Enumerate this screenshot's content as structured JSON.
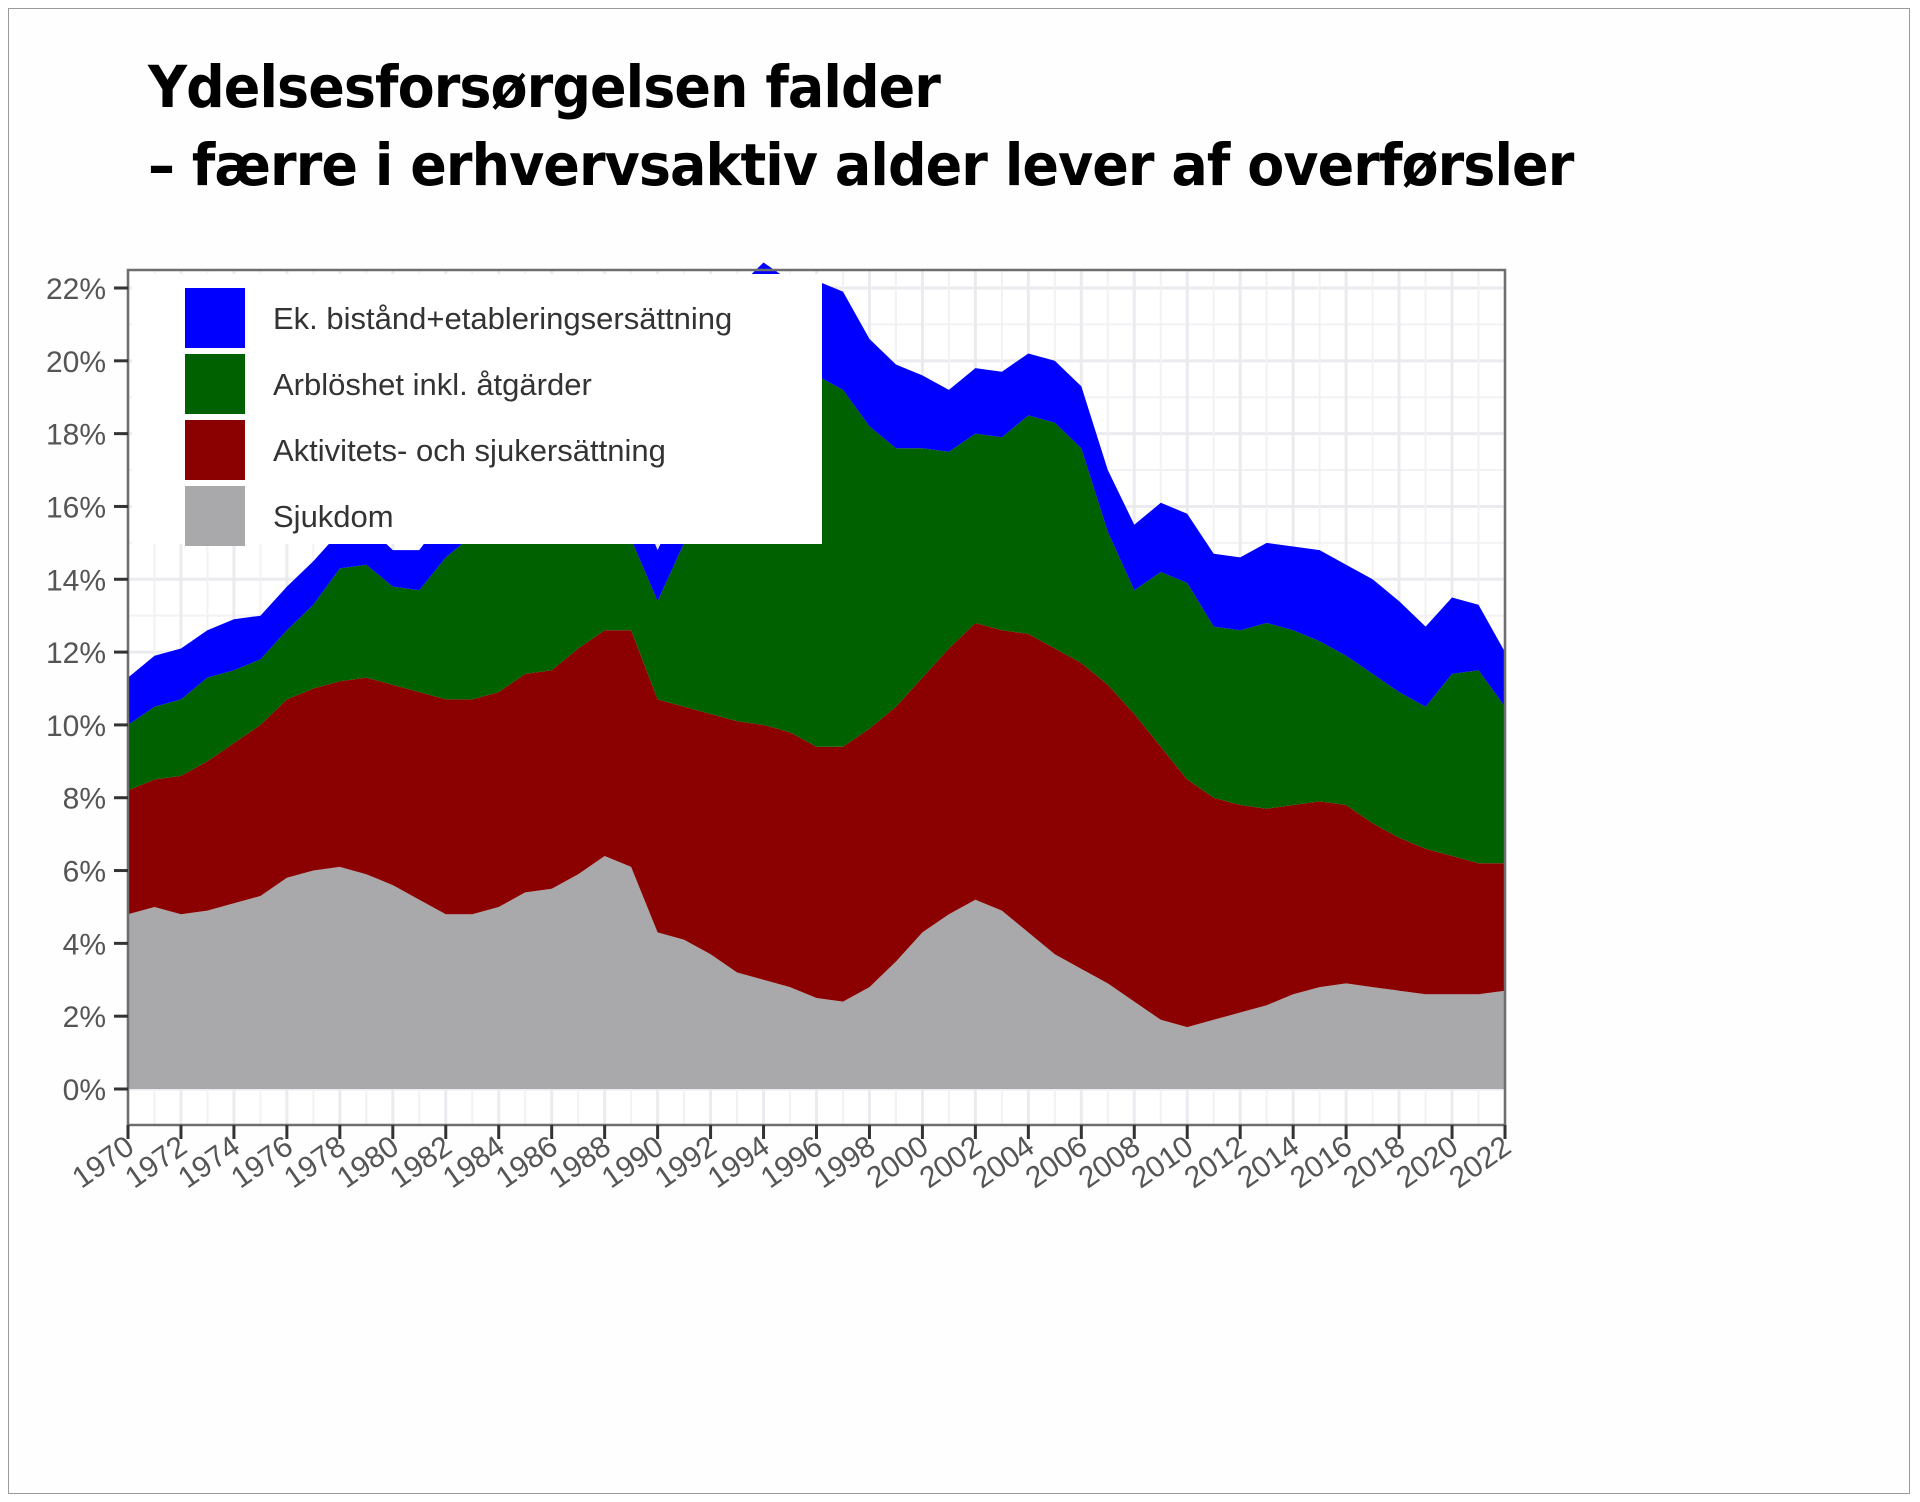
{
  "slide": {
    "title_line1": "Ydelsesforsørgelsen falder",
    "title_line2": "– færre i erhvervsaktiv alder lever af overførsler"
  },
  "chart_data": {
    "type": "area",
    "stacked": true,
    "title": "Ydelsesforsørgelsen falder – færre i erhvervsaktiv alder lever af overførsler",
    "xlabel": "",
    "ylabel": "",
    "x": [
      1970,
      1971,
      1972,
      1973,
      1974,
      1975,
      1976,
      1977,
      1978,
      1979,
      1980,
      1981,
      1982,
      1983,
      1984,
      1985,
      1986,
      1987,
      1988,
      1989,
      1990,
      1991,
      1992,
      1993,
      1994,
      1995,
      1996,
      1997,
      1998,
      1999,
      2000,
      2001,
      2002,
      2003,
      2004,
      2005,
      2006,
      2007,
      2008,
      2009,
      2010,
      2011,
      2012,
      2013,
      2014,
      2015,
      2016,
      2017,
      2018,
      2019,
      2020,
      2021,
      2022
    ],
    "xlim": [
      1970,
      2022
    ],
    "x_ticks": [
      "1970",
      "1972",
      "1974",
      "1976",
      "1978",
      "1980",
      "1982",
      "1984",
      "1986",
      "1988",
      "1990",
      "1992",
      "1994",
      "1996",
      "1998",
      "2000",
      "2002",
      "2004",
      "2006",
      "2008",
      "2010",
      "2012",
      "2014",
      "2016",
      "2018",
      "2020",
      "2022"
    ],
    "ylim": [
      -1,
      23.5
    ],
    "y_ticks": [
      "0%",
      "2%",
      "4%",
      "6%",
      "8%",
      "10%",
      "12%",
      "14%",
      "16%",
      "18%",
      "20%",
      "22%"
    ],
    "y_tick_values": [
      0,
      2,
      4,
      6,
      8,
      10,
      12,
      14,
      16,
      18,
      20,
      22
    ],
    "grid": true,
    "legend_position": "top-left",
    "unit": "%",
    "series": [
      {
        "name": "Sjukdom",
        "color": "#a9a8aa",
        "values": [
          4.8,
          5.0,
          4.8,
          4.9,
          5.1,
          5.3,
          5.8,
          6.0,
          6.1,
          5.9,
          5.6,
          5.2,
          4.8,
          4.8,
          5.0,
          5.4,
          5.5,
          5.9,
          6.4,
          6.1,
          4.3,
          4.1,
          3.7,
          3.2,
          3.0,
          2.8,
          2.5,
          2.4,
          2.8,
          3.5,
          4.3,
          4.8,
          5.2,
          4.9,
          4.3,
          3.7,
          3.3,
          2.9,
          2.4,
          1.9,
          1.7,
          1.9,
          2.1,
          2.3,
          2.6,
          2.8,
          2.9,
          2.8,
          2.7,
          2.6,
          2.6,
          2.6,
          2.7
        ]
      },
      {
        "name": "Aktivitets- och sjukersättning",
        "color": "#8b0000",
        "values": [
          3.4,
          3.5,
          3.8,
          4.1,
          4.4,
          4.7,
          4.9,
          5.0,
          5.1,
          5.4,
          5.5,
          5.7,
          5.9,
          5.9,
          5.9,
          6.0,
          6.0,
          6.2,
          6.2,
          6.5,
          6.4,
          6.4,
          6.6,
          6.9,
          7.0,
          7.0,
          6.9,
          7.0,
          7.1,
          7.0,
          7.0,
          7.3,
          7.6,
          7.7,
          8.2,
          8.4,
          8.4,
          8.2,
          7.9,
          7.5,
          6.8,
          6.1,
          5.7,
          5.4,
          5.2,
          5.1,
          4.9,
          4.5,
          4.2,
          4.0,
          3.8,
          3.6,
          3.5
        ]
      },
      {
        "name": "Arblöshet inkl. åtgärder",
        "color": "#006100",
        "values": [
          1.8,
          2.0,
          2.1,
          2.3,
          2.0,
          1.8,
          1.9,
          2.3,
          3.1,
          3.1,
          2.7,
          2.8,
          3.9,
          4.5,
          5.0,
          4.2,
          4.0,
          3.8,
          3.5,
          2.5,
          2.7,
          4.5,
          6.8,
          9.8,
          10.2,
          10.1,
          10.2,
          9.8,
          8.3,
          7.1,
          6.3,
          5.4,
          5.2,
          5.3,
          6.0,
          6.2,
          5.9,
          4.2,
          3.4,
          4.8,
          5.4,
          4.7,
          4.8,
          5.1,
          4.8,
          4.4,
          4.1,
          4.1,
          4.0,
          3.9,
          5.0,
          5.3,
          4.3
        ]
      },
      {
        "name": "Ek. bistånd+etableringsersättning",
        "color": "#0000ff",
        "values": [
          1.3,
          1.4,
          1.4,
          1.3,
          1.4,
          1.2,
          1.2,
          1.2,
          1.0,
          1.1,
          1.0,
          1.1,
          1.2,
          1.4,
          1.5,
          1.6,
          1.6,
          1.5,
          1.4,
          1.5,
          1.4,
          1.4,
          1.5,
          2.1,
          2.5,
          2.3,
          2.6,
          2.7,
          2.4,
          2.3,
          2.0,
          1.7,
          1.8,
          1.8,
          1.7,
          1.7,
          1.7,
          1.7,
          1.8,
          1.9,
          1.9,
          2.0,
          2.0,
          2.2,
          2.3,
          2.5,
          2.5,
          2.6,
          2.5,
          2.2,
          2.1,
          1.8,
          1.5
        ]
      }
    ],
    "legend": [
      {
        "label": "Ek. bistånd+etableringsersättning",
        "color": "#0000ff"
      },
      {
        "label": "Arblöshet inkl. åtgärder",
        "color": "#006100"
      },
      {
        "label": "Aktivitets- och sjukersättning",
        "color": "#8b0000"
      },
      {
        "label": "Sjukdom",
        "color": "#a9a8aa"
      }
    ]
  }
}
